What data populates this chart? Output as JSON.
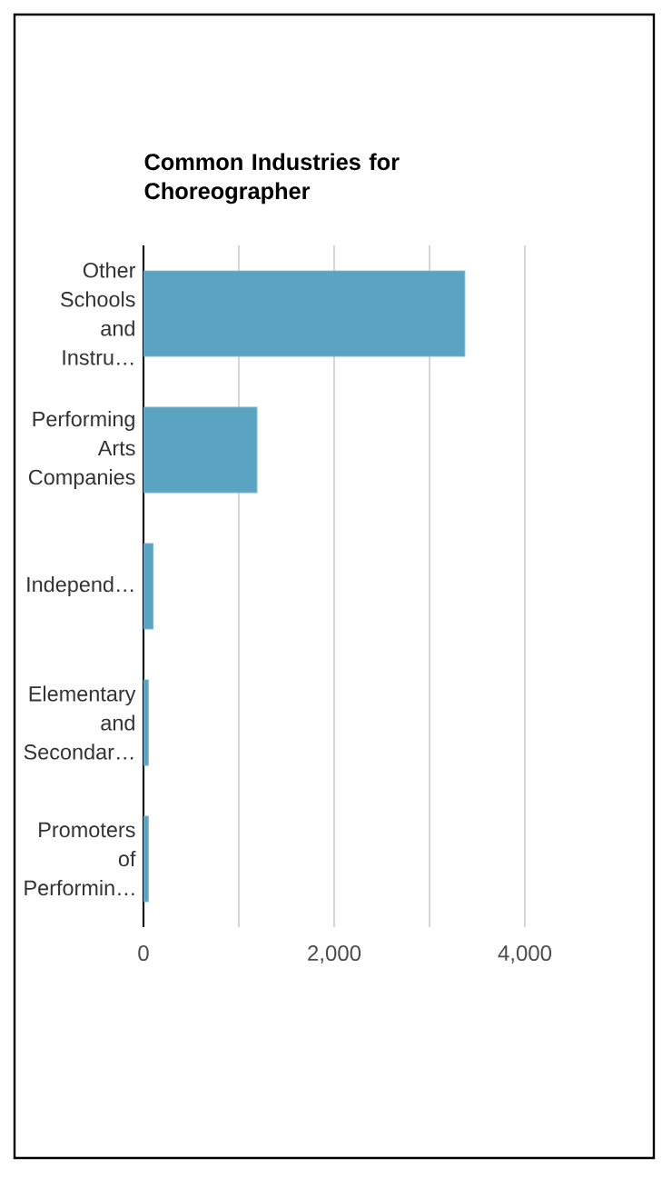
{
  "chart_data": {
    "type": "bar",
    "orientation": "horizontal",
    "title": "Common Industries for Choreographer",
    "categories": [
      "Other Schools and Instru…",
      "Performing Arts Companies",
      "Independ…",
      "Elementary and Secondar…",
      "Promoters of Performin…"
    ],
    "values": [
      3370,
      1190,
      100,
      50,
      50
    ],
    "color": "#5ba3c2",
    "xlim": [
      0,
      4000
    ],
    "xticks": [
      0,
      {
        "value": 1000,
        "label": null
      },
      {
        "value": 2000,
        "label": "2,000"
      },
      {
        "value": 3000,
        "label": null
      },
      {
        "value": 4000,
        "label": "4,000"
      }
    ],
    "grid": "x"
  }
}
